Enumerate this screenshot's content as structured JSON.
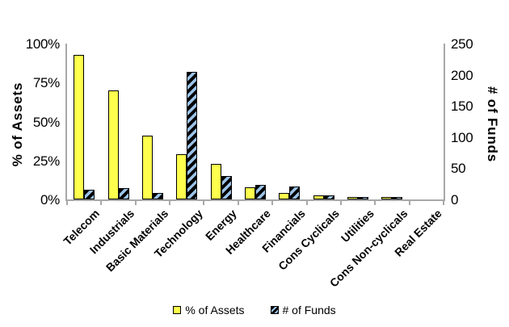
{
  "chart_data": {
    "type": "bar",
    "title": "",
    "categories": [
      "Telecom",
      "Industrials",
      "Basic Materials",
      "Technology",
      "Energy",
      "Healthcare",
      "Financials",
      "Cons Cyclicals",
      "Utilities",
      "Cons Non-cyclicals",
      "Real Estate"
    ],
    "series": [
      {
        "name": "% of Assets",
        "axis": "left",
        "values": [
          93,
          70,
          41,
          29,
          23,
          8,
          4,
          2.4,
          1.5,
          1.5,
          0
        ]
      },
      {
        "name": "# of Funds",
        "axis": "right",
        "values": [
          15,
          18,
          11,
          205,
          38,
          23,
          21,
          7,
          4,
          4,
          0
        ]
      }
    ],
    "left_axis": {
      "title": "% of Assets",
      "min": 0,
      "max": 100,
      "ticks": [
        "100%",
        "75%",
        "50%",
        "25%",
        "0%"
      ]
    },
    "right_axis": {
      "title": "# of Funds",
      "min": 0,
      "max": 250,
      "ticks": [
        "250",
        "200",
        "150",
        "100",
        "50",
        "0"
      ]
    },
    "legend": {
      "position": "bottom",
      "items": [
        "% of Assets",
        "# of Funds"
      ]
    },
    "grid": false
  },
  "colors": {
    "assets_fill": "#FFFF4D",
    "funds_fill": "#000000",
    "funds_stripe": "#9CC3E8",
    "axis_line": "#A8A8A8",
    "text": "#000000",
    "background": "#FFFFFF"
  }
}
